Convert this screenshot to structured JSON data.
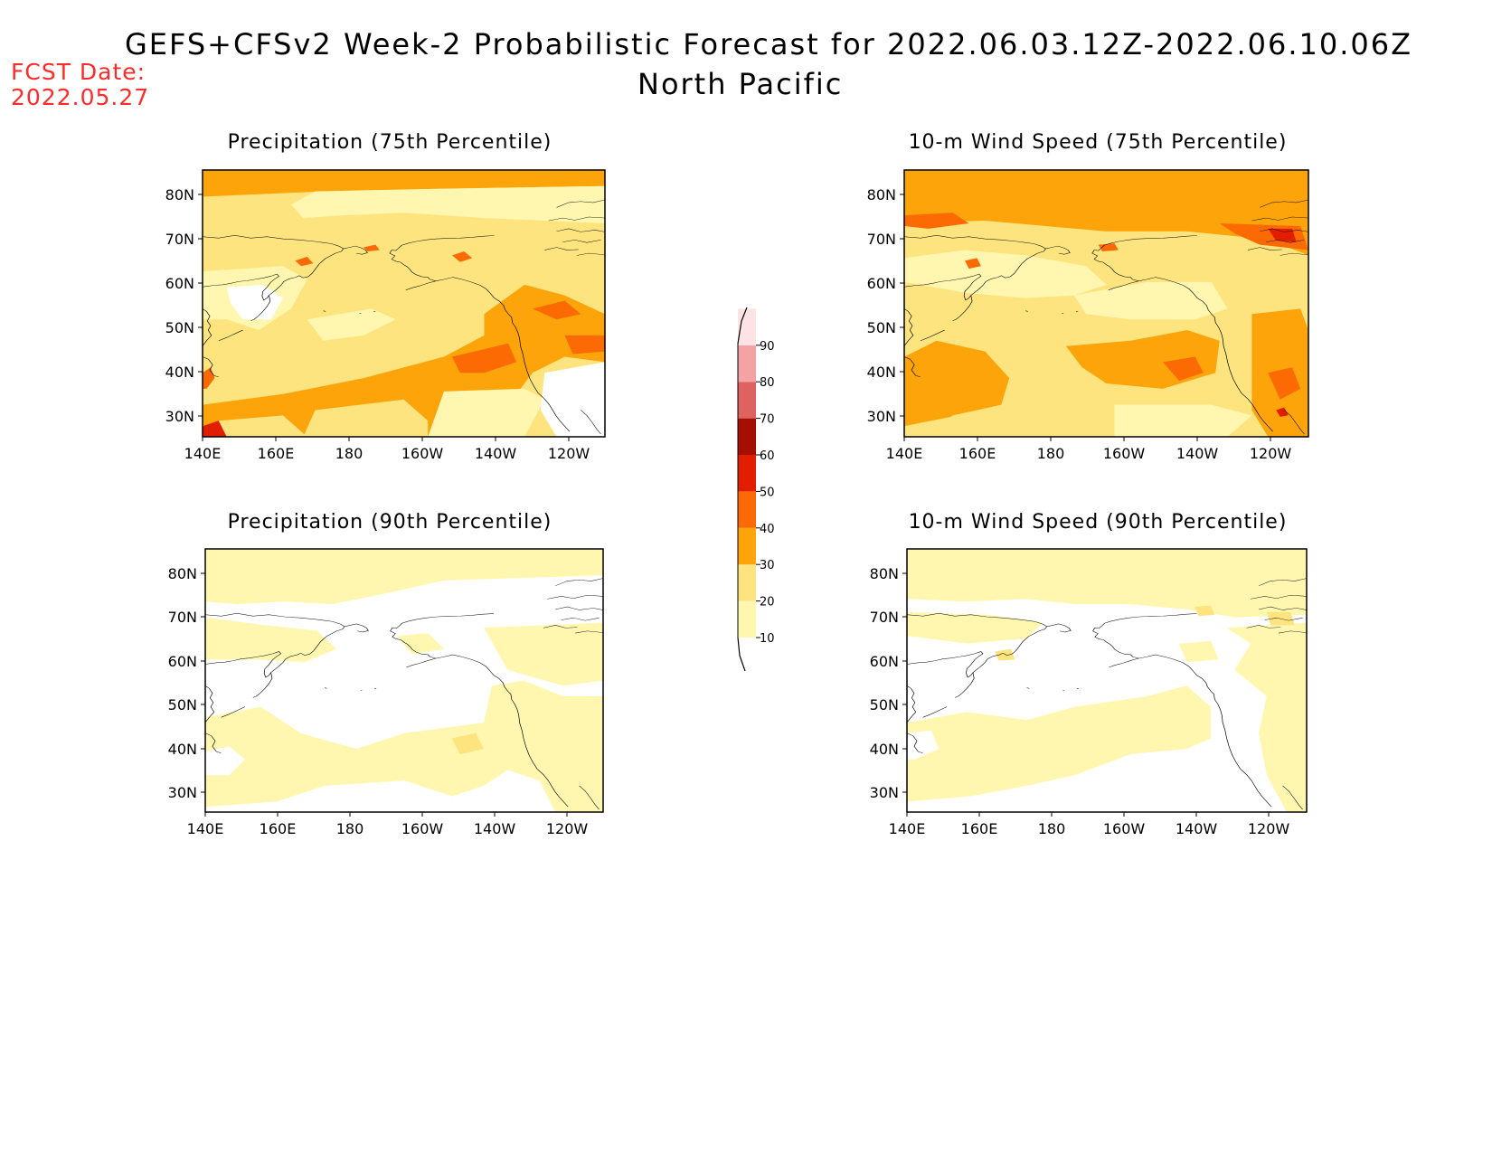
{
  "header": {
    "title": "GEFS+CFSv2 Week-2 Probabilistic Forecast for 2022.06.03.12Z-2022.06.10.06Z",
    "subtitle": "North Pacific",
    "fcst_label": "FCST Date:",
    "fcst_date": "2022.05.27"
  },
  "panels": [
    {
      "title": "Precipitation (75th Percentile)",
      "variable": "precipitation",
      "percentile": 75
    },
    {
      "title": "10-m Wind Speed (75th Percentile)",
      "variable": "wind",
      "percentile": 75
    },
    {
      "title": "Precipitation (90th Percentile)",
      "variable": "precipitation",
      "percentile": 90
    },
    {
      "title": "10-m Wind Speed (90th Percentile)",
      "variable": "wind",
      "percentile": 90
    }
  ],
  "axes": {
    "lat_labels": [
      "80N",
      "70N",
      "60N",
      "50N",
      "40N",
      "30N"
    ],
    "lat_values": [
      80,
      70,
      60,
      50,
      40,
      30
    ],
    "lon_labels": [
      "140E",
      "160E",
      "180",
      "160W",
      "140W",
      "120W"
    ],
    "lon_values": [
      140,
      160,
      180,
      200,
      220,
      240
    ],
    "lon_range": [
      140,
      250
    ],
    "lat_range": [
      25,
      85
    ]
  },
  "colorbar": {
    "labels": [
      "10",
      "20",
      "30",
      "40",
      "50",
      "60",
      "70",
      "80",
      "90"
    ],
    "colors": [
      "#fff7b0",
      "#fde47f",
      "#fca40a",
      "#fc6a04",
      "#e11f00",
      "#a50f02",
      "#dd6260",
      "#f3a3a4",
      "#fde3e4"
    ],
    "units": "%"
  }
}
